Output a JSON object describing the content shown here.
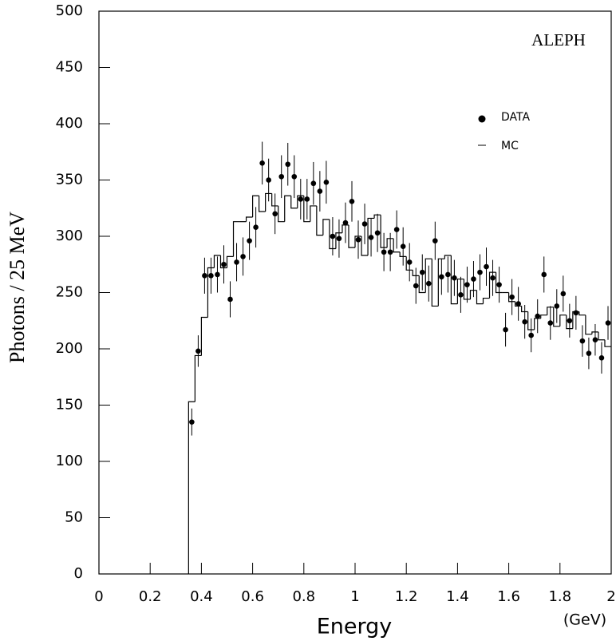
{
  "chart_data": {
    "type": "histogram",
    "annotation": "ALEPH",
    "xlabel": "Energy",
    "xunit": "(GeV)",
    "ylabel": "Photons / 25 MeV",
    "xlim": [
      0,
      2
    ],
    "ylim": [
      0,
      500
    ],
    "xticks": [
      0,
      0.2,
      0.4,
      0.6,
      0.8,
      1,
      1.2,
      1.4,
      1.6,
      1.8,
      2
    ],
    "yticks": [
      0,
      50,
      100,
      150,
      200,
      250,
      300,
      350,
      400,
      450,
      500
    ],
    "series": [
      {
        "name": "DATA",
        "color": "#000000",
        "x": [
          0.3625,
          0.3875,
          0.4125,
          0.4375,
          0.4625,
          0.4875,
          0.5125,
          0.5375,
          0.5625,
          0.5875,
          0.6125,
          0.6375,
          0.6625,
          0.6875,
          0.7125,
          0.7375,
          0.7625,
          0.7875,
          0.8125,
          0.8375,
          0.8625,
          0.8875,
          0.9125,
          0.9375,
          0.9625,
          0.9875,
          1.0125,
          1.0375,
          1.0625,
          1.0875,
          1.1125,
          1.1375,
          1.1625,
          1.1875,
          1.2125,
          1.2375,
          1.2625,
          1.2875,
          1.3125,
          1.3375,
          1.3625,
          1.3875,
          1.4125,
          1.4375,
          1.4625,
          1.4875,
          1.5125,
          1.5375,
          1.5625,
          1.5875,
          1.6125,
          1.6375,
          1.6625,
          1.6875,
          1.7125,
          1.7375,
          1.7625,
          1.7875,
          1.8125,
          1.8375,
          1.8625,
          1.8875,
          1.9125,
          1.9375,
          1.9625,
          1.9875
        ],
        "values": [
          135,
          198,
          265,
          265,
          266,
          275,
          244,
          277,
          282,
          296,
          308,
          365,
          350,
          320,
          353,
          364,
          353,
          333,
          333,
          347,
          340,
          348,
          300,
          298,
          312,
          331,
          297,
          311,
          299,
          303,
          286,
          286,
          306,
          291,
          277,
          256,
          268,
          258,
          296,
          264,
          266,
          263,
          248,
          257,
          262,
          268,
          273,
          263,
          257,
          217,
          246,
          240,
          224,
          212,
          229,
          266,
          223,
          238,
          249,
          225,
          232,
          207,
          196,
          208,
          192,
          223
        ],
        "errors": [
          12,
          14,
          16,
          16,
          16,
          17,
          16,
          17,
          17,
          17,
          18,
          19,
          19,
          18,
          19,
          19,
          19,
          18,
          18,
          19,
          18,
          19,
          17,
          17,
          18,
          18,
          17,
          18,
          17,
          17,
          17,
          17,
          17,
          17,
          17,
          16,
          16,
          16,
          17,
          16,
          16,
          16,
          16,
          16,
          16,
          16,
          17,
          16,
          16,
          15,
          16,
          15,
          15,
          15,
          15,
          16,
          15,
          15,
          16,
          15,
          15,
          14,
          14,
          14,
          14,
          15
        ]
      },
      {
        "name": "MC",
        "color": "#000000",
        "bins": [
          0.35,
          0.375,
          0.4,
          0.425,
          0.45,
          0.475,
          0.5,
          0.525,
          0.55,
          0.575,
          0.6,
          0.625,
          0.65,
          0.675,
          0.7,
          0.725,
          0.75,
          0.775,
          0.8,
          0.825,
          0.85,
          0.875,
          0.9,
          0.925,
          0.95,
          0.975,
          1,
          1.025,
          1.05,
          1.075,
          1.1,
          1.125,
          1.15,
          1.175,
          1.2,
          1.225,
          1.25,
          1.275,
          1.3,
          1.325,
          1.35,
          1.375,
          1.4,
          1.425,
          1.45,
          1.475,
          1.5,
          1.525,
          1.55,
          1.575,
          1.6,
          1.625,
          1.65,
          1.675,
          1.7,
          1.725,
          1.75,
          1.775,
          1.8,
          1.825,
          1.85,
          1.875,
          1.9,
          1.925,
          1.95,
          1.975,
          2
        ],
        "values": [
          153,
          194,
          228,
          272,
          283,
          272,
          282,
          313,
          313,
          317,
          336,
          322,
          338,
          327,
          313,
          336,
          325,
          336,
          313,
          327,
          301,
          315,
          289,
          303,
          310,
          290,
          300,
          283,
          316,
          319,
          290,
          298,
          286,
          282,
          270,
          265,
          250,
          280,
          238,
          280,
          283,
          240,
          262,
          244,
          252,
          240,
          245,
          268,
          250,
          250,
          242,
          238,
          233,
          217,
          227,
          230,
          237,
          220,
          230,
          218,
          233,
          230,
          213,
          215,
          208,
          202
        ]
      }
    ]
  }
}
